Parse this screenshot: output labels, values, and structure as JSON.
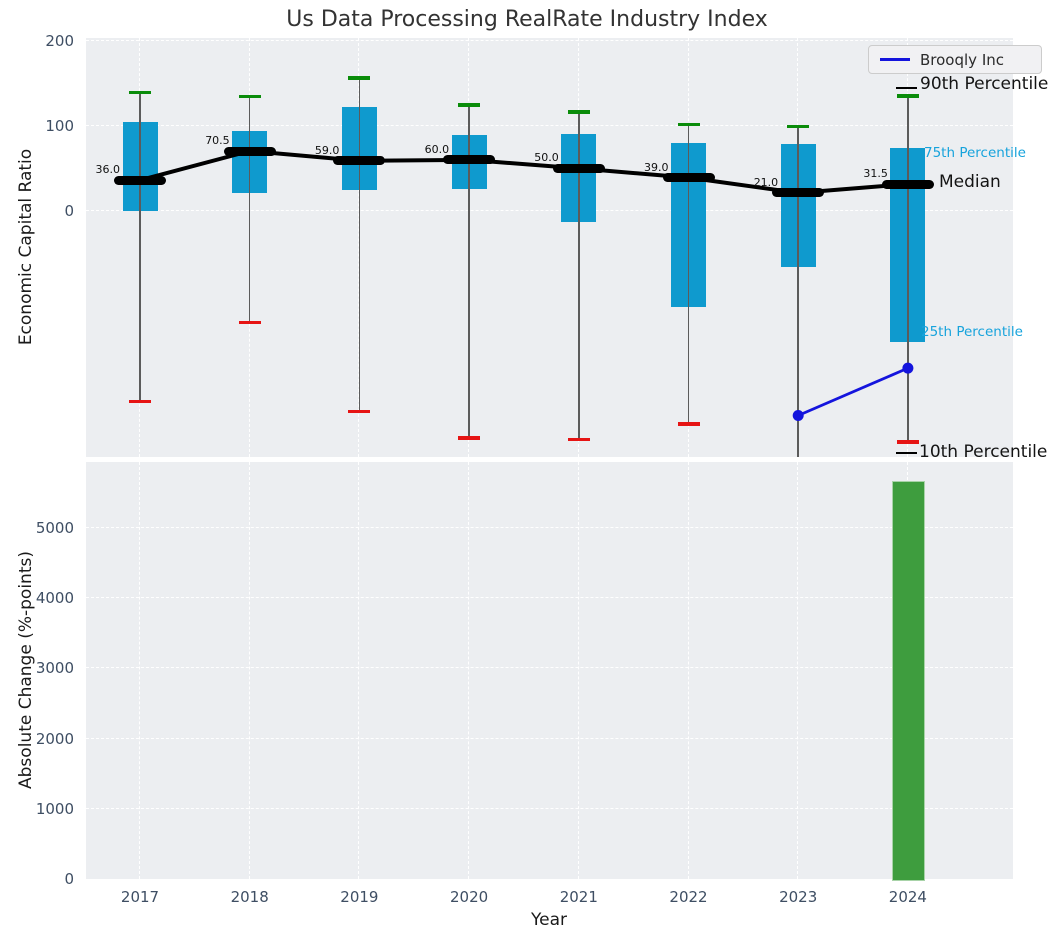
{
  "title": "Us Data Processing RealRate Industry Index",
  "colors": {
    "box_fill": "#0f9ace",
    "p90_cap": "#0a8c0a",
    "p10_cap": "#e61414",
    "median_line": "#000000",
    "overlay_line": "#1414dd",
    "bar_fill": "#3e9d3e",
    "plot_background": "#eceef1",
    "tick_label": "#3e4e63",
    "cyan_label": "#17a3dc"
  },
  "chart_data": [
    {
      "type": "boxplot",
      "title": "Us Data Processing RealRate Industry Index",
      "ylabel": "Economic Capital Ratio",
      "ylim": [
        -291,
        204
      ],
      "yticks": [
        0,
        100,
        200
      ],
      "grid": true,
      "legend": {
        "label": "Brooqly Inc",
        "position": "upper right"
      },
      "categories": [
        "2017",
        "2018",
        "2019",
        "2020",
        "2021",
        "2022",
        "2023",
        "2024"
      ],
      "series": [
        {
          "name": "90th Percentile",
          "values": [
            140,
            135,
            157,
            125,
            117,
            102,
            100,
            136
          ]
        },
        {
          "name": "75th Percentile",
          "values": [
            105,
            94,
            122,
            89,
            90,
            80,
            79,
            74
          ]
        },
        {
          "name": "Median",
          "values": [
            36.0,
            70.5,
            59.0,
            60.0,
            50.0,
            39.0,
            21.0,
            31.5
          ]
        },
        {
          "name": "25th Percentile",
          "values": [
            0,
            21,
            25,
            26,
            -13,
            -114,
            -67,
            -155
          ]
        },
        {
          "name": "10th Percentile",
          "values": [
            -225,
            -132,
            -237,
            -268,
            -270,
            -252,
            -300,
            -273
          ]
        }
      ],
      "median_labels": [
        "36.0",
        "70.5",
        "59.0",
        "60.0",
        "50.0",
        "39.0",
        "21.0",
        "31.5"
      ],
      "overlay_series": {
        "name": "Brooqly Inc",
        "x": [
          "2023",
          "2024"
        ],
        "values": [
          -242,
          -186
        ]
      },
      "right_labels": {
        "p90": "90th Percentile",
        "p75": "75th Percentile",
        "median": "Median",
        "p25": "25th Percentile",
        "p10": "10th Percentile"
      }
    },
    {
      "type": "bar",
      "ylabel": "Absolute Change (%-points)",
      "xlabel": "Year",
      "ylim": [
        0,
        5940
      ],
      "yticks": [
        0,
        1000,
        2000,
        3000,
        4000,
        5000
      ],
      "grid": true,
      "categories": [
        "2017",
        "2018",
        "2019",
        "2020",
        "2021",
        "2022",
        "2023",
        "2024"
      ],
      "values": [
        null,
        null,
        null,
        null,
        null,
        null,
        null,
        5670
      ]
    }
  ]
}
